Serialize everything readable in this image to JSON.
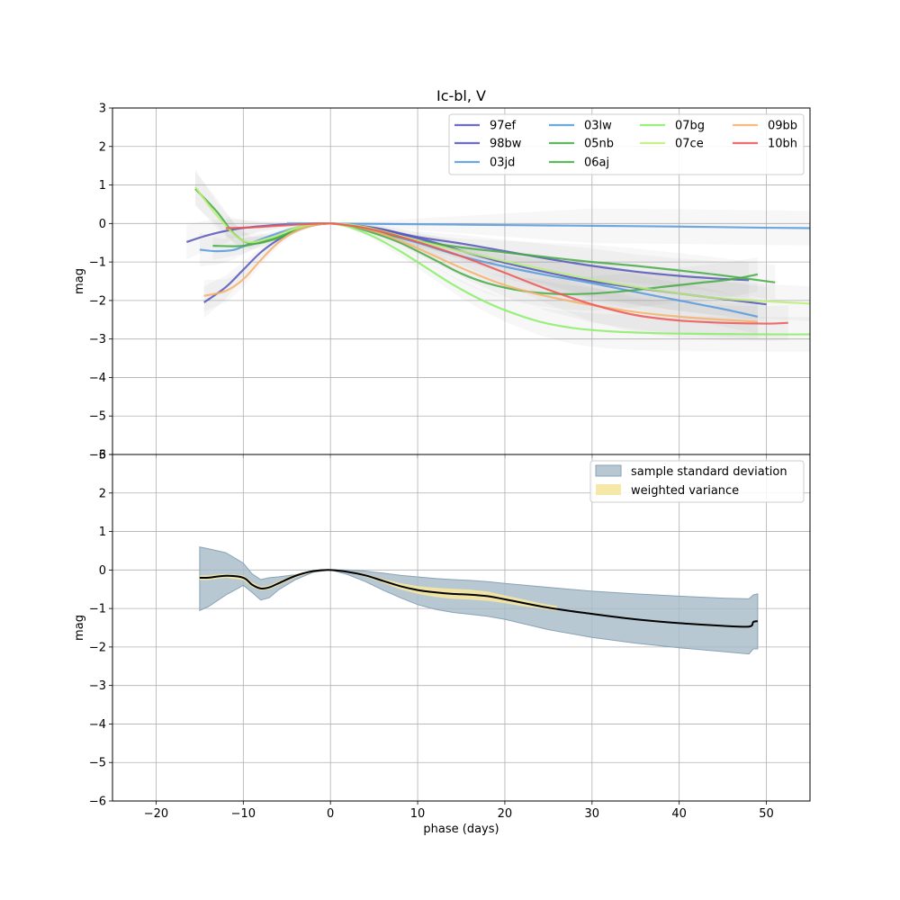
{
  "chart_data": [
    {
      "type": "line",
      "title": "Ic-bl, V",
      "xlabel": "",
      "ylabel": "mag",
      "xlim": [
        -25,
        55
      ],
      "ylim": [
        -6,
        3
      ],
      "xticks": [
        -20,
        -10,
        0,
        10,
        20,
        30,
        40,
        50
      ],
      "yticks": [
        -6,
        -5,
        -4,
        -3,
        -2,
        -1,
        0,
        1,
        2,
        3
      ],
      "grid": true,
      "legend": "top-right",
      "series": [
        {
          "name": "97ef",
          "color": "#5555bb",
          "x": [
            -16.5,
            -14,
            -11,
            -8,
            -5,
            -2,
            0,
            3,
            6,
            10,
            15,
            20,
            25,
            30,
            35,
            40,
            45,
            48
          ],
          "y": [
            -0.48,
            -0.3,
            -0.15,
            -0.07,
            -0.02,
            0,
            0,
            -0.05,
            -0.15,
            -0.35,
            -0.52,
            -0.72,
            -0.92,
            -1.1,
            -1.25,
            -1.36,
            -1.44,
            -1.47
          ]
        },
        {
          "name": "98bw",
          "color": "#5555bb",
          "x": [
            -14.5,
            -12,
            -10,
            -8,
            -6,
            -4,
            -2,
            0,
            2,
            5,
            8,
            12,
            16,
            20,
            25,
            30,
            35,
            40,
            45,
            50
          ],
          "y": [
            -2.05,
            -1.65,
            -1.2,
            -0.75,
            -0.42,
            -0.18,
            -0.05,
            0,
            -0.03,
            -0.12,
            -0.27,
            -0.5,
            -0.78,
            -1.02,
            -1.28,
            -1.5,
            -1.67,
            -1.82,
            -1.96,
            -2.1
          ]
        },
        {
          "name": "03jd",
          "color": "#5599dd",
          "x": [
            -15,
            -13,
            -11,
            -9,
            -6,
            -3,
            0,
            2,
            5,
            10,
            15,
            20,
            25,
            30,
            35,
            40,
            45,
            49
          ],
          "y": [
            -0.68,
            -0.72,
            -0.68,
            -0.5,
            -0.25,
            -0.06,
            0,
            -0.04,
            -0.2,
            -0.5,
            -0.85,
            -1.12,
            -1.35,
            -1.55,
            -1.78,
            -2.0,
            -2.22,
            -2.42
          ]
        },
        {
          "name": "03lw",
          "color": "#5599dd",
          "x": [
            -5,
            0,
            10,
            20,
            30,
            40,
            50,
            55
          ],
          "y": [
            0,
            0,
            -0.02,
            -0.04,
            -0.06,
            -0.08,
            -0.11,
            -0.12
          ]
        },
        {
          "name": "05nb",
          "color": "#44aa44",
          "x": [
            -13.5,
            -10,
            -7,
            -4,
            -2,
            0,
            3,
            6,
            10,
            15,
            20,
            25,
            30,
            35,
            40,
            45,
            51
          ],
          "y": [
            -0.58,
            -0.58,
            -0.42,
            -0.18,
            -0.04,
            0,
            -0.1,
            -0.25,
            -0.45,
            -0.62,
            -0.75,
            -0.88,
            -1.0,
            -1.1,
            -1.22,
            -1.35,
            -1.53
          ]
        },
        {
          "name": "06aj",
          "color": "#44aa44",
          "x": [
            -15.5,
            -13,
            -11,
            -9,
            -6,
            -3,
            -1,
            0,
            2,
            5,
            8,
            12,
            15,
            18,
            22,
            26,
            30,
            34,
            38,
            42,
            46,
            49
          ],
          "y": [
            0.9,
            0.3,
            -0.28,
            -0.52,
            -0.38,
            -0.1,
            -0.01,
            0,
            -0.05,
            -0.25,
            -0.5,
            -0.95,
            -1.3,
            -1.55,
            -1.75,
            -1.83,
            -1.82,
            -1.75,
            -1.65,
            -1.55,
            -1.45,
            -1.32
          ]
        },
        {
          "name": "07bg",
          "color": "#88ee66",
          "x": [
            -5,
            -3,
            -1,
            0,
            2,
            5,
            8,
            11,
            14,
            17,
            20,
            24,
            28,
            32,
            36,
            40,
            45,
            50,
            55
          ],
          "y": [
            -0.2,
            -0.08,
            -0.01,
            0,
            -0.08,
            -0.35,
            -0.72,
            -1.15,
            -1.58,
            -1.95,
            -2.25,
            -2.55,
            -2.72,
            -2.8,
            -2.84,
            -2.86,
            -2.87,
            -2.88,
            -2.88
          ]
        },
        {
          "name": "07ce",
          "color": "#bbee77",
          "x": [
            -15.5,
            -13,
            -10,
            -7,
            -4,
            -2,
            0,
            3,
            6,
            10,
            15,
            20,
            25,
            30,
            35,
            40,
            45,
            50,
            55
          ],
          "y": [
            0.95,
            0.2,
            -0.45,
            -0.38,
            -0.12,
            -0.02,
            0,
            -0.05,
            -0.2,
            -0.45,
            -0.72,
            -0.98,
            -1.22,
            -1.45,
            -1.65,
            -1.82,
            -1.95,
            -2.02,
            -2.08
          ]
        },
        {
          "name": "09bb",
          "color": "#f5b06a",
          "x": [
            -14.5,
            -12,
            -10,
            -8,
            -6,
            -4,
            -2,
            0,
            2,
            5,
            8,
            12,
            16,
            20,
            25,
            30,
            35,
            40,
            45,
            49
          ],
          "y": [
            -1.88,
            -1.75,
            -1.45,
            -0.95,
            -0.5,
            -0.2,
            -0.05,
            0,
            -0.05,
            -0.2,
            -0.45,
            -0.85,
            -1.25,
            -1.6,
            -1.9,
            -2.12,
            -2.3,
            -2.42,
            -2.5,
            -2.55
          ]
        },
        {
          "name": "10bh",
          "color": "#ee5555",
          "x": [
            -12,
            -9,
            -6,
            -3,
            0,
            3,
            6,
            10,
            15,
            20,
            25,
            30,
            35,
            40,
            45,
            50,
            52.5
          ],
          "y": [
            -0.12,
            -0.1,
            -0.06,
            -0.02,
            0,
            -0.08,
            -0.22,
            -0.48,
            -0.85,
            -1.28,
            -1.72,
            -2.1,
            -2.38,
            -2.52,
            -2.58,
            -2.6,
            -2.58
          ]
        }
      ],
      "legend_columns": [
        [
          "97ef",
          "98bw",
          "03jd"
        ],
        [
          "03lw",
          "05nb",
          "06aj"
        ],
        [
          "07bg",
          "07ce"
        ],
        [
          "09bb",
          "10bh"
        ]
      ]
    },
    {
      "type": "area",
      "title": "",
      "xlabel": "phase (days)",
      "ylabel": "mag",
      "xlim": [
        -25,
        55
      ],
      "ylim": [
        -6,
        3
      ],
      "xticks": [
        -20,
        -10,
        0,
        10,
        20,
        30,
        40,
        50
      ],
      "yticks": [
        -6,
        -5,
        -4,
        -3,
        -2,
        -1,
        0,
        1,
        2,
        3
      ],
      "grid": true,
      "legend": "top-right",
      "mean": {
        "x": [
          -15,
          -14,
          -12,
          -10,
          -9,
          -8,
          -7,
          -6,
          -4,
          -2,
          0,
          2,
          4,
          6,
          8,
          10,
          12,
          14,
          16,
          18,
          20,
          25,
          30,
          35,
          40,
          45,
          48,
          48.5,
          49
        ],
        "y": [
          -0.2,
          -0.2,
          -0.15,
          -0.2,
          -0.38,
          -0.48,
          -0.45,
          -0.35,
          -0.15,
          -0.03,
          0,
          -0.05,
          -0.14,
          -0.28,
          -0.42,
          -0.52,
          -0.58,
          -0.62,
          -0.64,
          -0.68,
          -0.76,
          -0.98,
          -1.14,
          -1.28,
          -1.38,
          -1.45,
          -1.47,
          -1.35,
          -1.33
        ]
      },
      "std_band": {
        "name": "sample standard deviation",
        "color": "#a6bac8",
        "x": [
          -15,
          -14,
          -12,
          -10,
          -9,
          -8,
          -7,
          -6,
          -4,
          -2,
          0,
          2,
          4,
          6,
          8,
          10,
          12,
          14,
          16,
          18,
          20,
          25,
          30,
          35,
          40,
          45,
          48,
          48.5,
          49
        ],
        "lower": [
          -1.05,
          -0.95,
          -0.65,
          -0.4,
          -0.58,
          -0.78,
          -0.72,
          -0.52,
          -0.25,
          -0.06,
          0,
          -0.12,
          -0.3,
          -0.52,
          -0.72,
          -0.9,
          -1.02,
          -1.1,
          -1.15,
          -1.2,
          -1.28,
          -1.55,
          -1.75,
          -1.9,
          -2.02,
          -2.12,
          -2.18,
          -2.05,
          -2.05
        ],
        "upper": [
          0.6,
          0.55,
          0.45,
          0.18,
          -0.1,
          -0.25,
          -0.2,
          -0.18,
          -0.12,
          -0.02,
          0,
          0,
          -0.03,
          -0.08,
          -0.14,
          -0.18,
          -0.22,
          -0.25,
          -0.27,
          -0.3,
          -0.35,
          -0.45,
          -0.55,
          -0.62,
          -0.68,
          -0.73,
          -0.75,
          -0.65,
          -0.62
        ]
      },
      "var_band": {
        "name": "weighted variance",
        "color": "#f5e6a0",
        "x": [
          -15,
          -14,
          -12,
          -10,
          -9,
          -8,
          -7,
          -6,
          -4,
          -2,
          0,
          2,
          4,
          6,
          8,
          10,
          12,
          14,
          16,
          18,
          20,
          22,
          24,
          26
        ],
        "lower": [
          -0.26,
          -0.26,
          -0.2,
          -0.26,
          -0.44,
          -0.53,
          -0.5,
          -0.4,
          -0.19,
          -0.05,
          0,
          -0.07,
          -0.17,
          -0.33,
          -0.5,
          -0.62,
          -0.7,
          -0.75,
          -0.77,
          -0.8,
          -0.86,
          -0.94,
          -1.0,
          -1.06
        ],
        "upper": [
          -0.14,
          -0.14,
          -0.1,
          -0.14,
          -0.32,
          -0.43,
          -0.4,
          -0.3,
          -0.11,
          -0.01,
          0,
          -0.03,
          -0.11,
          -0.23,
          -0.34,
          -0.42,
          -0.46,
          -0.49,
          -0.51,
          -0.56,
          -0.66,
          -0.76,
          -0.86,
          -0.94
        ]
      }
    }
  ]
}
